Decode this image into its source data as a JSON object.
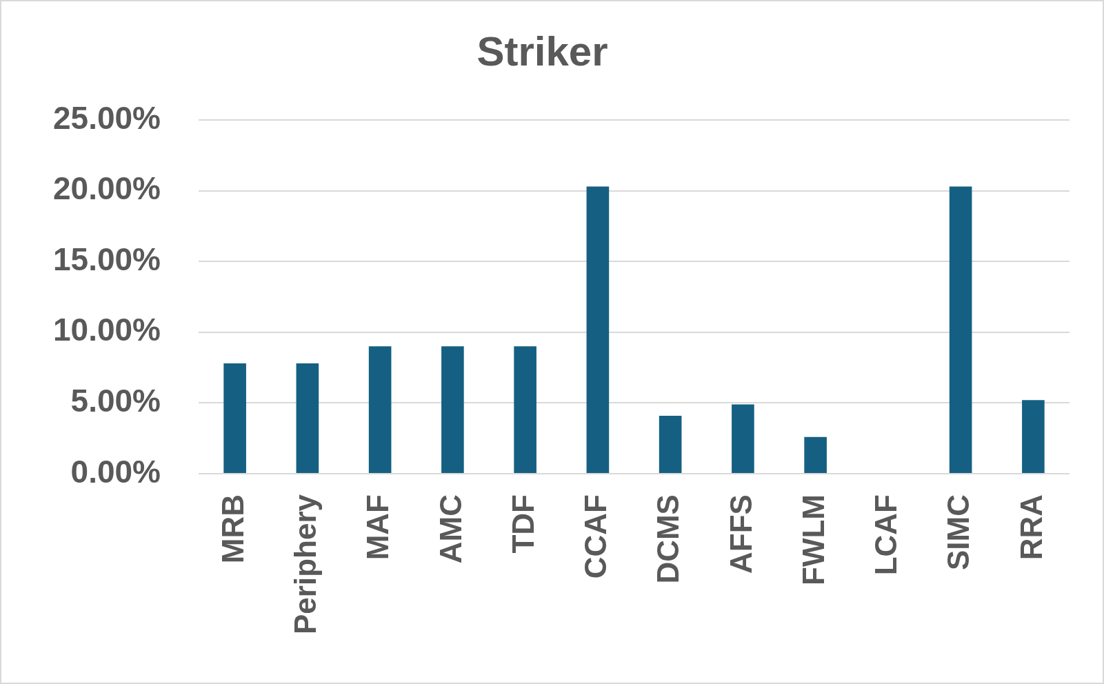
{
  "chart_data": {
    "type": "bar",
    "title": "Striker",
    "categories": [
      "MRB",
      "Periphery",
      "MAF",
      "AMC",
      "TDF",
      "CCAF",
      "DCMS",
      "AFFS",
      "FWLM",
      "LCAF",
      "SIMC",
      "RRA"
    ],
    "values": [
      7.8,
      7.8,
      9.0,
      9.0,
      9.0,
      20.3,
      4.1,
      4.9,
      2.6,
      0,
      20.3,
      5.2
    ],
    "color": "#156082",
    "ylim": [
      0,
      25
    ],
    "yticks": [
      {
        "value": 0,
        "label": "0.00%"
      },
      {
        "value": 5,
        "label": "5.00%"
      },
      {
        "value": 10,
        "label": "10.00%"
      },
      {
        "value": 15,
        "label": "15.00%"
      },
      {
        "value": 20,
        "label": "20.00%"
      },
      {
        "value": 25,
        "label": "25.00%"
      }
    ],
    "grid": "y",
    "legend": false
  }
}
